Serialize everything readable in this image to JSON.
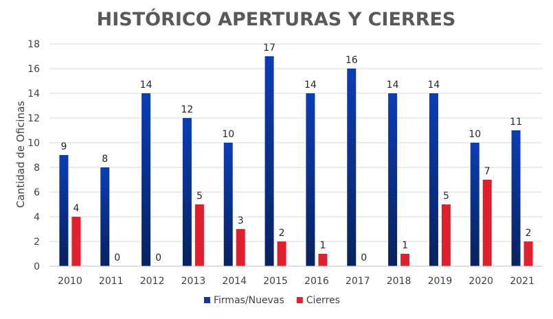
{
  "chart_data": {
    "type": "bar",
    "title": "HISTÓRICO APERTURAS Y CIERRES",
    "ylabel": "Cantidad de Oficinas",
    "xlabel": "",
    "ylim": [
      0,
      18
    ],
    "yticks": [
      0,
      2,
      4,
      6,
      8,
      10,
      12,
      14,
      16,
      18
    ],
    "grid": true,
    "legend_position": "bottom",
    "categories": [
      "2010",
      "2011",
      "2012",
      "2013",
      "2014",
      "2015",
      "2016",
      "2017",
      "2018",
      "2019",
      "2020",
      "2021"
    ],
    "series": [
      {
        "name": "Firmas/Nuevas",
        "color": "#0a3aa8",
        "values": [
          9,
          8,
          14,
          12,
          10,
          17,
          14,
          16,
          14,
          14,
          10,
          11
        ]
      },
      {
        "name": "Cierres",
        "color": "#e0202e",
        "values": [
          4,
          0,
          0,
          5,
          3,
          2,
          1,
          0,
          1,
          5,
          7,
          2
        ]
      }
    ]
  }
}
